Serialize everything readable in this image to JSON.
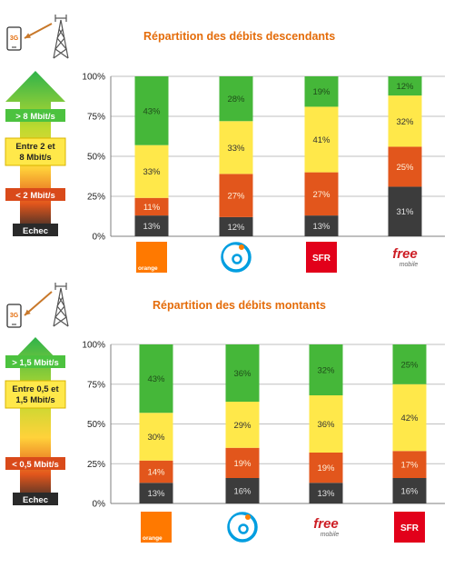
{
  "panels": [
    {
      "id": "down",
      "title": "Répartition des débits descendants",
      "phone_badge": "3G",
      "legend": [
        {
          "label": "> 8 Mbit/s",
          "key": "green"
        },
        {
          "label": "Entre 2 et 8 Mbit/s",
          "key": "yellow"
        },
        {
          "label": "< 2 Mbit/s",
          "key": "red"
        },
        {
          "label": "Echec",
          "key": "dark"
        }
      ],
      "operators": [
        {
          "logo": "orange",
          "text": "orange"
        },
        {
          "logo": "bouygues",
          "text": ""
        },
        {
          "logo": "sfr",
          "text": "SFR"
        },
        {
          "logo": "free",
          "text": "free",
          "subtext": "mobile"
        }
      ]
    },
    {
      "id": "up",
      "title": "Répartition des débits montants",
      "phone_badge": "3G",
      "legend": [
        {
          "label": "> 1,5 Mbit/s",
          "key": "green"
        },
        {
          "label": "Entre 0,5 et 1,5 Mbit/s",
          "key": "yellow"
        },
        {
          "label": "< 0,5 Mbit/s",
          "key": "red"
        },
        {
          "label": "Echec",
          "key": "dark"
        }
      ],
      "operators": [
        {
          "logo": "orange",
          "text": "orange"
        },
        {
          "logo": "bouygues",
          "text": ""
        },
        {
          "logo": "free",
          "text": "free",
          "subtext": "mobile"
        },
        {
          "logo": "sfr",
          "text": "SFR"
        }
      ]
    }
  ],
  "colors": {
    "green": "#45b739",
    "yellow": "#ffe84a",
    "red": "#e2561c",
    "dark": "#3c3c3c",
    "title": "#e46c0a",
    "orange_logo": "#ff7900",
    "sfr_logo": "#e2001a",
    "bouygues_logo": "#009ee0",
    "free_logo": "#cd1e25"
  },
  "chart_data": [
    {
      "type": "bar",
      "stacked": true,
      "title": "Répartition des débits descendants",
      "categories": [
        "Orange",
        "Bouygues",
        "SFR",
        "Free mobile"
      ],
      "ylim": [
        0,
        100
      ],
      "yticks": [
        "0%",
        "25%",
        "50%",
        "75%",
        "100%"
      ],
      "grid": true,
      "series": [
        {
          "name": "Echec",
          "color": "dark",
          "values": [
            13,
            12,
            13,
            31
          ]
        },
        {
          "name": "< 2 Mbit/s",
          "color": "red",
          "values": [
            11,
            27,
            27,
            25
          ]
        },
        {
          "name": "Entre 2 et 8 Mbit/s",
          "color": "yellow",
          "values": [
            33,
            33,
            41,
            32
          ]
        },
        {
          "name": "> 8 Mbit/s",
          "color": "green",
          "values": [
            43,
            28,
            19,
            12
          ]
        }
      ]
    },
    {
      "type": "bar",
      "stacked": true,
      "title": "Répartition des débits montants",
      "categories": [
        "Orange",
        "Bouygues",
        "Free mobile",
        "SFR"
      ],
      "ylim": [
        0,
        100
      ],
      "yticks": [
        "0%",
        "25%",
        "50%",
        "75%",
        "100%"
      ],
      "grid": true,
      "series": [
        {
          "name": "Echec",
          "color": "dark",
          "values": [
            13,
            16,
            13,
            16
          ]
        },
        {
          "name": "< 0,5 Mbit/s",
          "color": "red",
          "values": [
            14,
            19,
            19,
            17
          ]
        },
        {
          "name": "Entre 0,5 et 1,5 Mbit/s",
          "color": "yellow",
          "values": [
            30,
            29,
            36,
            42
          ]
        },
        {
          "name": "> 1,5 Mbit/s",
          "color": "green",
          "values": [
            43,
            36,
            32,
            25
          ]
        }
      ]
    }
  ]
}
